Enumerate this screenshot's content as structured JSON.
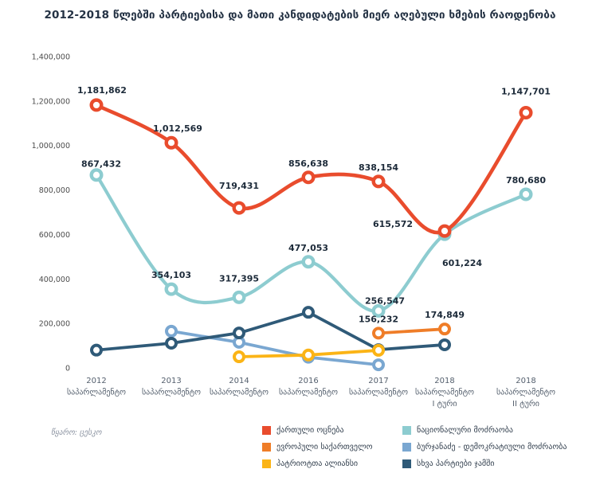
{
  "title": "2012-2018 წლებში პარტიებისა და მათი კანდიდატების მიერ აღებული ხმების რაოდენობა",
  "source_note": "წყარო: ცესკო",
  "chart_data": {
    "type": "line",
    "title": "2012-2018 წლებში პარტიებისა და მათი კანდიდატების მიერ აღებული ხმების რაოდენობა",
    "grid": false,
    "legend_position": "bottom",
    "y_axis": {
      "min": 0,
      "max": 1400000,
      "step": 200000,
      "tick_labels": [
        "0",
        "200,000",
        "400,000",
        "600,000",
        "800,000",
        "1,000,000",
        "1,200,000",
        "1,400,000"
      ]
    },
    "categories": [
      {
        "year": "2012",
        "label": "საპარლამენტო",
        "round": ""
      },
      {
        "year": "2013",
        "label": "საპარლამენტო",
        "round": ""
      },
      {
        "year": "2014",
        "label": "საპარლამენტო",
        "round": ""
      },
      {
        "year": "2016",
        "label": "საპარლამენტო",
        "round": ""
      },
      {
        "year": "2017",
        "label": "საპარლამენტო",
        "round": ""
      },
      {
        "year": "2018",
        "label": "საპარლამენტო",
        "round": "I ტური"
      },
      {
        "year": "2018",
        "label": "საპარლამენტო",
        "round": "II ტური"
      }
    ],
    "series": [
      {
        "id": "burjanadze-democratic-movement",
        "name": "ბურჯანაძე - დემოკრატიული მოძრაობა",
        "color": "#7AA7D1",
        "smooth": false,
        "values": [
          null,
          165000,
          115000,
          48000,
          14000,
          null,
          null
        ],
        "labels": [
          null,
          null,
          null,
          null,
          null,
          null,
          null
        ]
      },
      {
        "id": "other-parties",
        "name": "სხვა პარტიები ჯამში",
        "color": "#2F5A78",
        "smooth": false,
        "values": [
          80000,
          111000,
          157000,
          250000,
          82000,
          104000,
          null
        ],
        "labels": [
          null,
          null,
          null,
          null,
          null,
          null,
          null
        ]
      },
      {
        "id": "patriots-alliance",
        "name": "პატრიოტთა ალიანსი",
        "color": "#FBB416",
        "smooth": false,
        "values": [
          null,
          null,
          50000,
          58000,
          79000,
          null,
          null
        ],
        "labels": [
          null,
          null,
          null,
          null,
          null,
          null,
          null
        ]
      },
      {
        "id": "european-georgia",
        "name": "ევროპული საქართველო",
        "color": "#EF7D28",
        "smooth": false,
        "values": [
          null,
          null,
          null,
          null,
          156232,
          174849,
          null
        ],
        "labels": [
          null,
          null,
          null,
          null,
          "156,232",
          "174,849",
          null
        ]
      },
      {
        "id": "national-movement",
        "name": "ნაციონალური მოძრაობა",
        "color": "#8DCCD0",
        "smooth": true,
        "values": [
          867432,
          354103,
          317395,
          477053,
          256547,
          601224,
          780680
        ],
        "labels": [
          "867,432",
          "354,103",
          "317,395",
          "477,053",
          "256,547",
          "601,224",
          "780,680"
        ]
      },
      {
        "id": "georgian-dream",
        "name": "ქართული ოცნება",
        "color": "#E94C2D",
        "smooth": true,
        "values": [
          1181862,
          1012569,
          719431,
          856638,
          838154,
          615572,
          1147701
        ],
        "labels": [
          "1,181,862",
          "1,012,569",
          "719,431",
          "856,638",
          "838,154",
          "615,572",
          "1,147,701"
        ]
      }
    ],
    "legend_columns": [
      [
        "georgian-dream",
        "european-georgia",
        "patriots-alliance"
      ],
      [
        "national-movement",
        "burjanadze-democratic-movement",
        "other-parties"
      ]
    ]
  }
}
